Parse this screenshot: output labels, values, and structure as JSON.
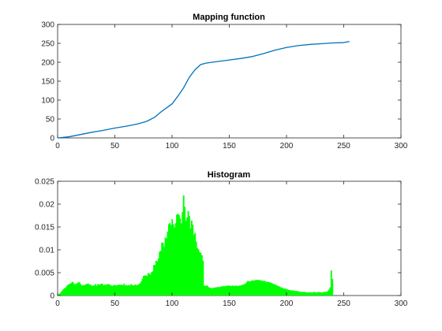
{
  "chart_data": [
    {
      "type": "line",
      "title": "Mapping function",
      "xlabel": "",
      "ylabel": "",
      "xlim": [
        0,
        300
      ],
      "ylim": [
        0,
        300
      ],
      "xticks": [
        0,
        50,
        100,
        150,
        200,
        250,
        300
      ],
      "yticks": [
        0,
        50,
        100,
        150,
        200,
        250,
        300
      ],
      "grid": false,
      "series": [
        {
          "color": "#0072BD",
          "x": [
            0,
            10,
            20,
            30,
            40,
            50,
            60,
            70,
            78,
            85,
            90,
            95,
            100,
            105,
            110,
            115,
            120,
            125,
            130,
            140,
            150,
            160,
            170,
            180,
            190,
            200,
            210,
            220,
            230,
            240,
            250,
            255
          ],
          "y": [
            0,
            3,
            9,
            15,
            20,
            26,
            31,
            37,
            44,
            55,
            68,
            79,
            90,
            110,
            132,
            160,
            180,
            194,
            198,
            202,
            206,
            210,
            215,
            223,
            232,
            239,
            244,
            247,
            249,
            251,
            252,
            255
          ]
        }
      ]
    },
    {
      "type": "bar",
      "title": "Histogram",
      "xlabel": "",
      "ylabel": "",
      "xlim": [
        0,
        300
      ],
      "ylim": [
        0,
        0.025
      ],
      "xticks": [
        0,
        50,
        100,
        150,
        200,
        250,
        300
      ],
      "yticks": [
        0,
        0.005,
        0.01,
        0.015,
        0.02,
        0.025
      ],
      "ytick_labels": [
        "0",
        "0.005",
        "0.01",
        "0.015",
        "0.02",
        "0.025"
      ],
      "grid": false,
      "series": [
        {
          "color": "#00FF00",
          "x_start": 0,
          "x_step": 1,
          "values": [
            0.0003,
            0.0003,
            0.0005,
            0.0008,
            0.0011,
            0.0014,
            0.0016,
            0.0018,
            0.0021,
            0.0024,
            0.0025,
            0.0026,
            0.0028,
            0.003,
            0.0027,
            0.0024,
            0.0026,
            0.0027,
            0.0029,
            0.0029,
            0.0025,
            0.0022,
            0.0023,
            0.0022,
            0.0024,
            0.0025,
            0.0026,
            0.0026,
            0.0023,
            0.0024,
            0.0021,
            0.0022,
            0.0022,
            0.0025,
            0.0021,
            0.0025,
            0.0024,
            0.0024,
            0.0026,
            0.0026,
            0.0022,
            0.0024,
            0.0023,
            0.0025,
            0.0025,
            0.0025,
            0.0022,
            0.0022,
            0.0021,
            0.0023,
            0.0023,
            0.0022,
            0.0023,
            0.0023,
            0.0024,
            0.0023,
            0.0024,
            0.0022,
            0.0026,
            0.0022,
            0.0023,
            0.0022,
            0.0023,
            0.0022,
            0.0025,
            0.0023,
            0.0022,
            0.0023,
            0.0024,
            0.0022,
            0.0024,
            0.0025,
            0.0027,
            0.0031,
            0.0037,
            0.0043,
            0.0044,
            0.0044,
            0.0043,
            0.0049,
            0.0048,
            0.0046,
            0.0051,
            0.0053,
            0.0067,
            0.0067,
            0.0076,
            0.0075,
            0.0081,
            0.0096,
            0.0098,
            0.0116,
            0.0115,
            0.0106,
            0.0127,
            0.0125,
            0.014,
            0.0156,
            0.0159,
            0.0154,
            0.0167,
            0.0156,
            0.0149,
            0.0158,
            0.0177,
            0.0179,
            0.0176,
            0.0169,
            0.0158,
            0.0183,
            0.0219,
            0.0194,
            0.0163,
            0.0171,
            0.0185,
            0.0174,
            0.0147,
            0.0164,
            0.0155,
            0.0133,
            0.0137,
            0.0118,
            0.0104,
            0.0101,
            0.0095,
            0.0093,
            0.0088,
            0.0076,
            0.0022,
            0.0021,
            0.0022,
            0.0021,
            0.0018,
            0.0017,
            0.0016,
            0.0016,
            0.0017,
            0.0017,
            0.0018,
            0.0018,
            0.0019,
            0.0018,
            0.0019,
            0.002,
            0.002,
            0.0021,
            0.002,
            0.0021,
            0.0022,
            0.0021,
            0.0022,
            0.0021,
            0.0021,
            0.0022,
            0.0021,
            0.0021,
            0.0022,
            0.0021,
            0.0021,
            0.0022,
            0.0022,
            0.0023,
            0.0024,
            0.0025,
            0.0026,
            0.0029,
            0.0032,
            0.0031,
            0.0031,
            0.0032,
            0.0033,
            0.0033,
            0.0033,
            0.0034,
            0.0034,
            0.0034,
            0.0034,
            0.0033,
            0.0033,
            0.0032,
            0.0032,
            0.0032,
            0.003,
            0.003,
            0.003,
            0.0029,
            0.0028,
            0.0027,
            0.0026,
            0.0025,
            0.0024,
            0.0023,
            0.0021,
            0.0021,
            0.0019,
            0.0018,
            0.0017,
            0.0016,
            0.0015,
            0.0015,
            0.0014,
            0.0013,
            0.0012,
            0.0012,
            0.0011,
            0.0011,
            0.0011,
            0.001,
            0.001,
            0.001,
            0.0009,
            0.0009,
            0.0008,
            0.0008,
            0.0008,
            0.0008,
            0.0008,
            0.0007,
            0.0007,
            0.0007,
            0.0007,
            0.0007,
            0.0007,
            0.0007,
            0.0008,
            0.0007,
            0.0007,
            0.0007,
            0.0008,
            0.0007,
            0.0007,
            0.0007,
            0.0007,
            0.0008,
            0.0008,
            0.0008,
            0.001,
            0.0013,
            0.0018,
            0.0055,
            0.0036
          ]
        }
      ]
    }
  ]
}
